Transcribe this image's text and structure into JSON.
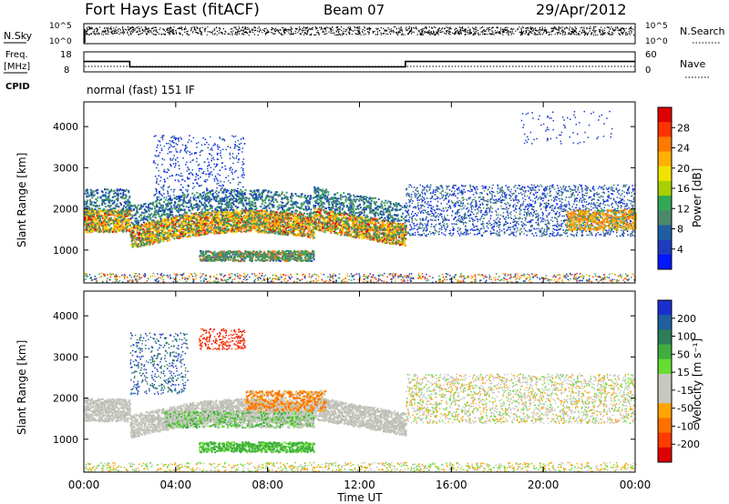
{
  "header": {
    "station": "Fort Hays East (fitACF)",
    "beam": "Beam 07",
    "date": "29/Apr/2012"
  },
  "left_labels": {
    "nsky": "N.Sky",
    "freq": "Freq.",
    "freq_unit": "[MHz]",
    "cpid": "CPID"
  },
  "right_labels": {
    "nsearch": "N.Search",
    "nave": "Nave"
  },
  "cpid_text": "normal (fast) 151 IF",
  "colorbars": {
    "power": {
      "label": "Power [dB]",
      "ticks": [
        "28",
        "24",
        "20",
        "16",
        "12",
        "8",
        "4"
      ],
      "colors": [
        "#e00000",
        "#ff3300",
        "#ff7a00",
        "#ffb000",
        "#f2e200",
        "#a8d000",
        "#33a855",
        "#4a8a6a",
        "#1f5fa0",
        "#1e3cc0",
        "#0018ff"
      ]
    },
    "velocity": {
      "label": "Velocity [m s⁻¹]",
      "ticks": [
        "200",
        "100",
        "50",
        "15",
        "-15",
        "-50",
        "-100",
        "-200"
      ],
      "colors": [
        "#1a2fd0",
        "#1f5fa0",
        "#2e7d5a",
        "#3fae3f",
        "#66dd33",
        "#c8c8c0",
        "#c8c8c0",
        "#ffa500",
        "#ff7000",
        "#ff3b00",
        "#e00000"
      ]
    }
  },
  "chart_data": [
    {
      "type": "line",
      "name": "nsky-nsearch",
      "y_ticks_left": [
        "10^5",
        "10^0"
      ],
      "y_ticks_right": [
        "10^5",
        "10^0"
      ]
    },
    {
      "type": "line",
      "name": "freq-nave",
      "y_ticks_left": [
        "18",
        "8"
      ],
      "y_ticks_right": [
        "60",
        "0"
      ],
      "freq_segments_mhz": [
        [
          0,
          13.2
        ],
        [
          2,
          10.5
        ],
        [
          14,
          13.2
        ],
        [
          24,
          13.2
        ]
      ]
    },
    {
      "type": "heatmap",
      "name": "power",
      "ylabel": "Slant Range [km]",
      "y_ticks": [
        "4000",
        "3000",
        "2000",
        "1000"
      ],
      "ylim": [
        200,
        4600
      ],
      "x_ticks": [
        "00:00",
        "04:00",
        "08:00",
        "12:00",
        "16:00",
        "20:00",
        "00:00"
      ],
      "xlim": [
        0,
        24
      ]
    },
    {
      "type": "heatmap",
      "name": "velocity",
      "ylabel": "Slant Range [km]",
      "y_ticks": [
        "4000",
        "3000",
        "2000",
        "1000"
      ],
      "ylim": [
        200,
        4600
      ],
      "x_ticks": [
        "00:00",
        "04:00",
        "08:00",
        "12:00",
        "16:00",
        "20:00",
        "00:00"
      ],
      "xlim": [
        0,
        24
      ],
      "xlabel": "Time UT"
    }
  ]
}
